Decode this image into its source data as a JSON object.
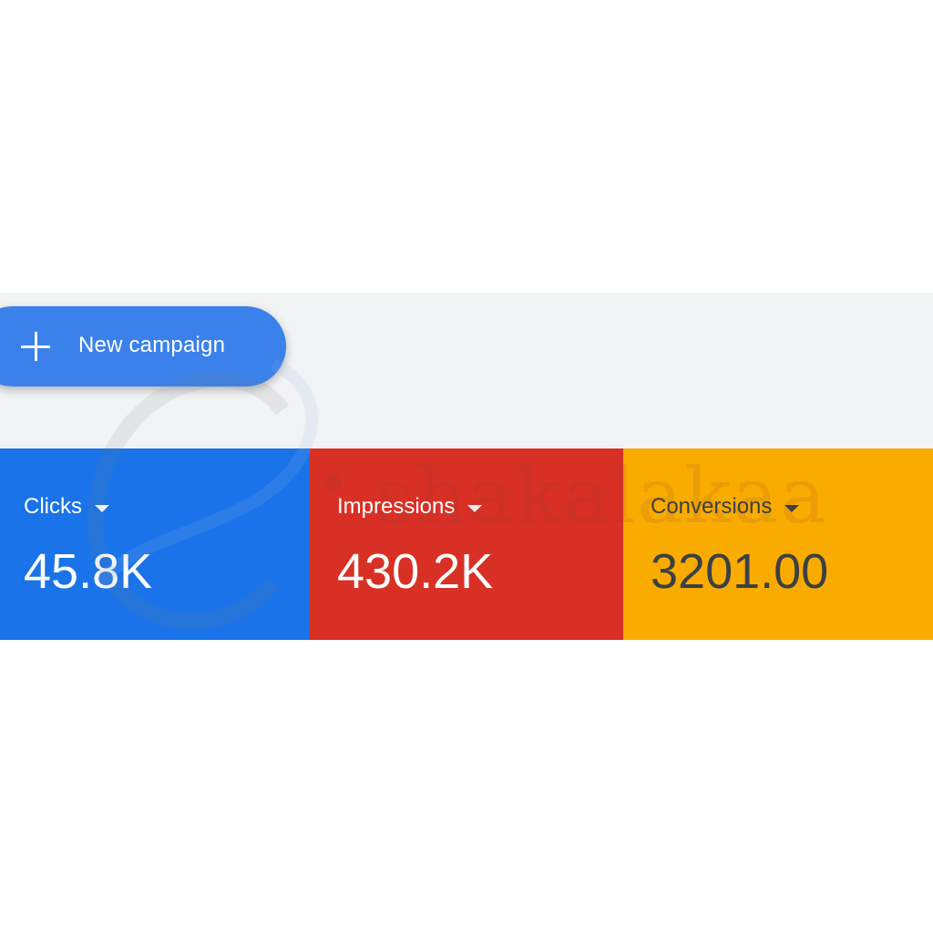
{
  "toolbar": {
    "new_campaign_label": "New campaign",
    "new_campaign_icon": "plus-icon"
  },
  "metrics": [
    {
      "label": "Clicks",
      "value": "45.8K",
      "color": "#1a73e8"
    },
    {
      "label": "Impressions",
      "value": "430.2K",
      "color": "#d93025"
    },
    {
      "label": "Conversions",
      "value": "3201.00",
      "color": "#f9ab00"
    }
  ],
  "watermark": {
    "text": "shakalakaa"
  }
}
